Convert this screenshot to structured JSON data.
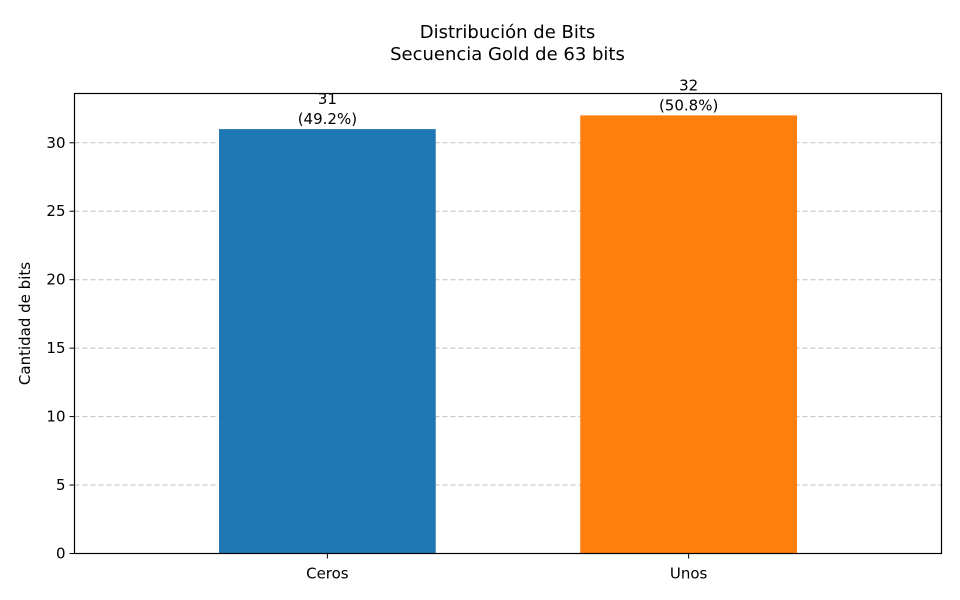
{
  "chart_data": {
    "type": "bar",
    "title": "Distribución de Bits",
    "subtitle": "Secuencia Gold de 63 bits",
    "xlabel": "",
    "ylabel": "Cantidad de bits",
    "categories": [
      "Ceros",
      "Unos"
    ],
    "values": [
      31,
      32
    ],
    "value_labels": [
      "31",
      "32"
    ],
    "percent_labels": [
      "(49.2%)",
      "(50.8%)"
    ],
    "colors": [
      "#1f77b4",
      "#ff7f0e"
    ],
    "ylim": [
      0,
      33.6
    ],
    "yticks": [
      0,
      5,
      10,
      15,
      20,
      25,
      30
    ],
    "grid": true,
    "grid_axis": "y",
    "legend": "none"
  }
}
